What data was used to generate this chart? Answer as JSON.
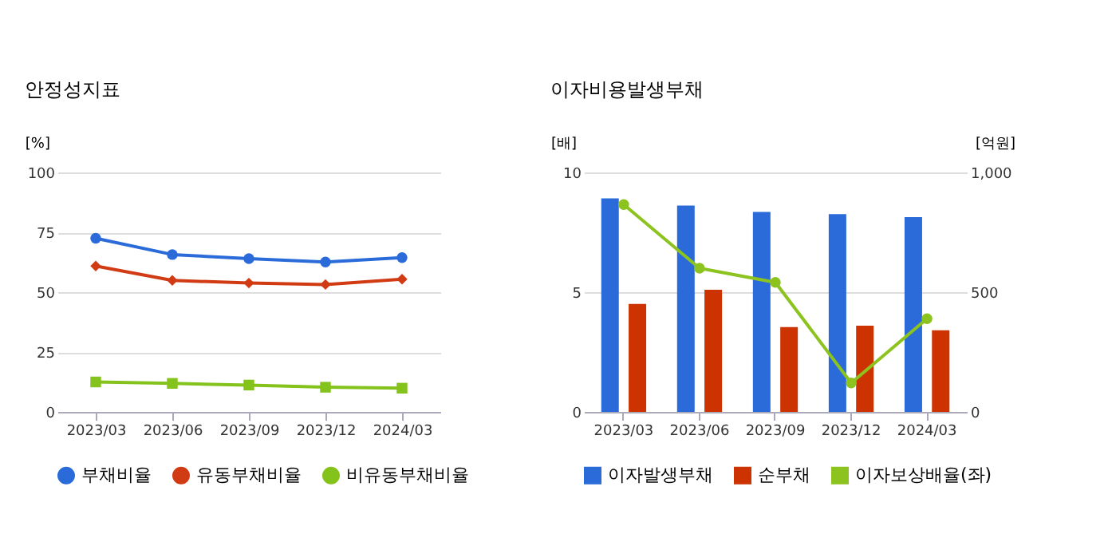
{
  "chart_data": [
    {
      "type": "line",
      "title": "안정성지표",
      "ylabel": "[%]",
      "categories": [
        "2023/03",
        "2023/06",
        "2023/09",
        "2023/12",
        "2024/03"
      ],
      "ylim": [
        0,
        100
      ],
      "yticks": [
        0,
        25,
        50,
        75,
        100
      ],
      "grid": "y",
      "legend": "bottom",
      "line_style": "solid",
      "series": [
        {
          "name": "부채비율",
          "color": "#2a6bd9",
          "marker": "circle",
          "values": [
            72.5,
            65.7,
            64.0,
            62.6,
            64.4
          ]
        },
        {
          "name": "유동부채비율",
          "color": "#d13b14",
          "marker": "diamond",
          "values": [
            60.9,
            54.9,
            53.8,
            53.2,
            55.4
          ]
        },
        {
          "name": "비유동부채비율",
          "color": "#84c21c",
          "marker": "square",
          "values": [
            12.5,
            11.9,
            11.2,
            10.3,
            9.9
          ]
        }
      ]
    },
    {
      "type": "bar",
      "title": "이자비용발생부채",
      "ylabel": "[배]",
      "y2label": "[억원]",
      "categories": [
        "2023/03",
        "2023/06",
        "2023/09",
        "2023/12",
        "2024/03"
      ],
      "ylim": [
        0,
        10
      ],
      "yticks": [
        0,
        5,
        10
      ],
      "y2lim": [
        0,
        1000
      ],
      "y2ticks": [
        0,
        500,
        {
          "value": 1000,
          "label": "1,000"
        }
      ],
      "grid": "y",
      "legend": "bottom",
      "series": [
        {
          "name": "이자발생부채",
          "color": "#2a6bd9",
          "axis": "y2",
          "values": [
            892,
            862,
            835,
            826,
            813
          ]
        },
        {
          "name": "순부채",
          "color": "#cc3300",
          "axis": "y2",
          "values": [
            451,
            510,
            354,
            360,
            341
          ]
        },
        {
          "name": "이자보상배율(좌)",
          "type": "line",
          "color": "#8cc31e",
          "marker": "circle",
          "line_style": "solid",
          "values": [
            8.66,
            6.0,
            5.41,
            1.21,
            3.89
          ]
        }
      ]
    }
  ]
}
